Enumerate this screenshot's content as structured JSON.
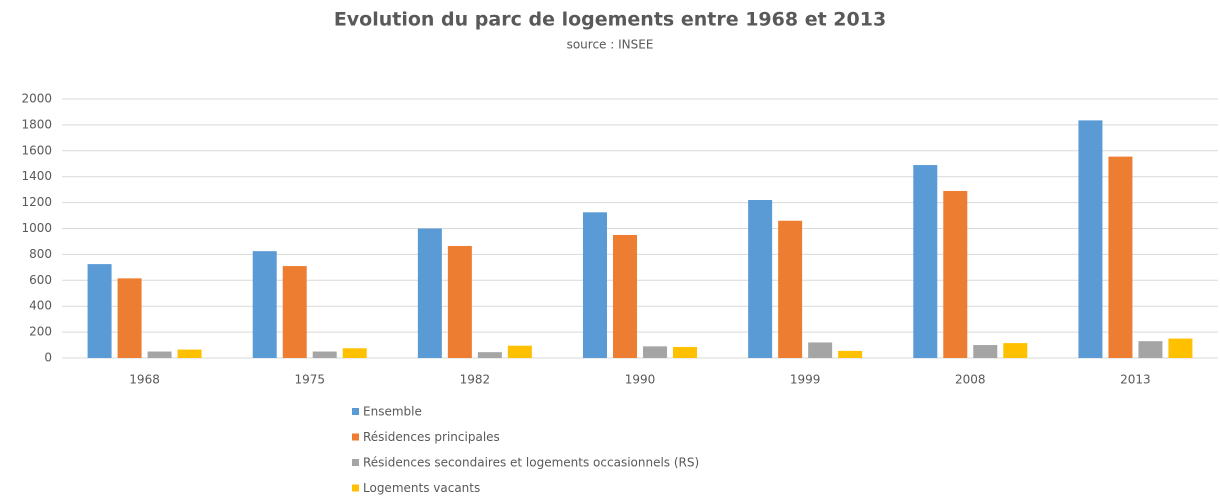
{
  "chart_data": {
    "type": "bar",
    "title": "Evolution du parc de logements entre 1968 et 2013",
    "subtitle": "source : INSEE",
    "categories": [
      "1968",
      "1975",
      "1982",
      "1990",
      "1999",
      "2008",
      "2013"
    ],
    "series": [
      {
        "name": "Ensemble",
        "color": "#5b9bd5",
        "values": [
          725,
          825,
          1000,
          1125,
          1220,
          1490,
          1835
        ]
      },
      {
        "name": "Résidences principales",
        "color": "#ed7d31",
        "values": [
          615,
          710,
          865,
          950,
          1060,
          1290,
          1555
        ]
      },
      {
        "name": "Résidences secondaires et logements occasionnels (RS)",
        "color": "#a5a5a5",
        "values": [
          50,
          50,
          45,
          90,
          120,
          100,
          130
        ]
      },
      {
        "name": "Logements vacants",
        "color": "#ffc000",
        "values": [
          65,
          75,
          95,
          85,
          55,
          115,
          150
        ]
      }
    ],
    "ylim": [
      0,
      2000
    ],
    "yticks": [
      0,
      200,
      400,
      600,
      800,
      1000,
      1200,
      1400,
      1600,
      1800,
      2000
    ],
    "grid": true,
    "legend": "bottom"
  }
}
